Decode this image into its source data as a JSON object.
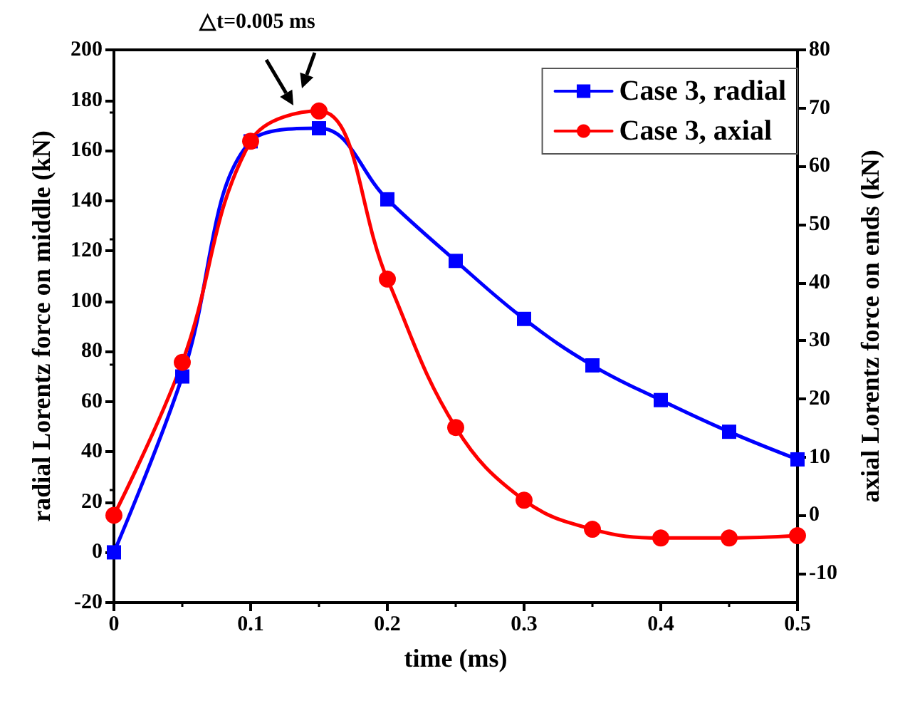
{
  "chart_data": {
    "type": "line",
    "xlabel": "time (ms)",
    "ylabel": "radial Lorentz force on middle (kN)",
    "y2label": "axial Lorentz force on ends (kN)",
    "x": [
      0,
      0.05,
      0.1,
      0.15,
      0.2,
      0.25,
      0.3,
      0.35,
      0.4,
      0.45,
      0.5
    ],
    "series": [
      {
        "name": "Case 3, radial",
        "color": "#0000ff",
        "marker": "square",
        "values": [
          0,
          70,
          163.6,
          168.8,
          140.5,
          116,
          92.9,
          74.4,
          60.6,
          48,
          37
        ]
      },
      {
        "name": "Case 3, axial",
        "color": "#ff0000",
        "marker": "circle",
        "axis": "y2",
        "values": [
          0,
          26.3,
          64.3,
          69.5,
          40.6,
          15.1,
          2.6,
          -2.4,
          -3.9,
          -3.9,
          -3.5
        ]
      }
    ],
    "xlim": [
      0,
      0.5
    ],
    "xticks": [
      0,
      0.1,
      0.2,
      0.3,
      0.4,
      0.5
    ],
    "ylim": [
      -20,
      200
    ],
    "yticks": [
      -20,
      0,
      20,
      40,
      60,
      80,
      100,
      120,
      140,
      160,
      180,
      200
    ],
    "y2lim": [
      -15,
      80
    ],
    "y2ticks": [
      -10,
      0,
      10,
      20,
      30,
      40,
      50,
      60,
      70,
      80
    ],
    "annotations": [
      "△t=0.005 ms"
    ],
    "grid": false,
    "legend": "top right",
    "line_style": "solid"
  }
}
